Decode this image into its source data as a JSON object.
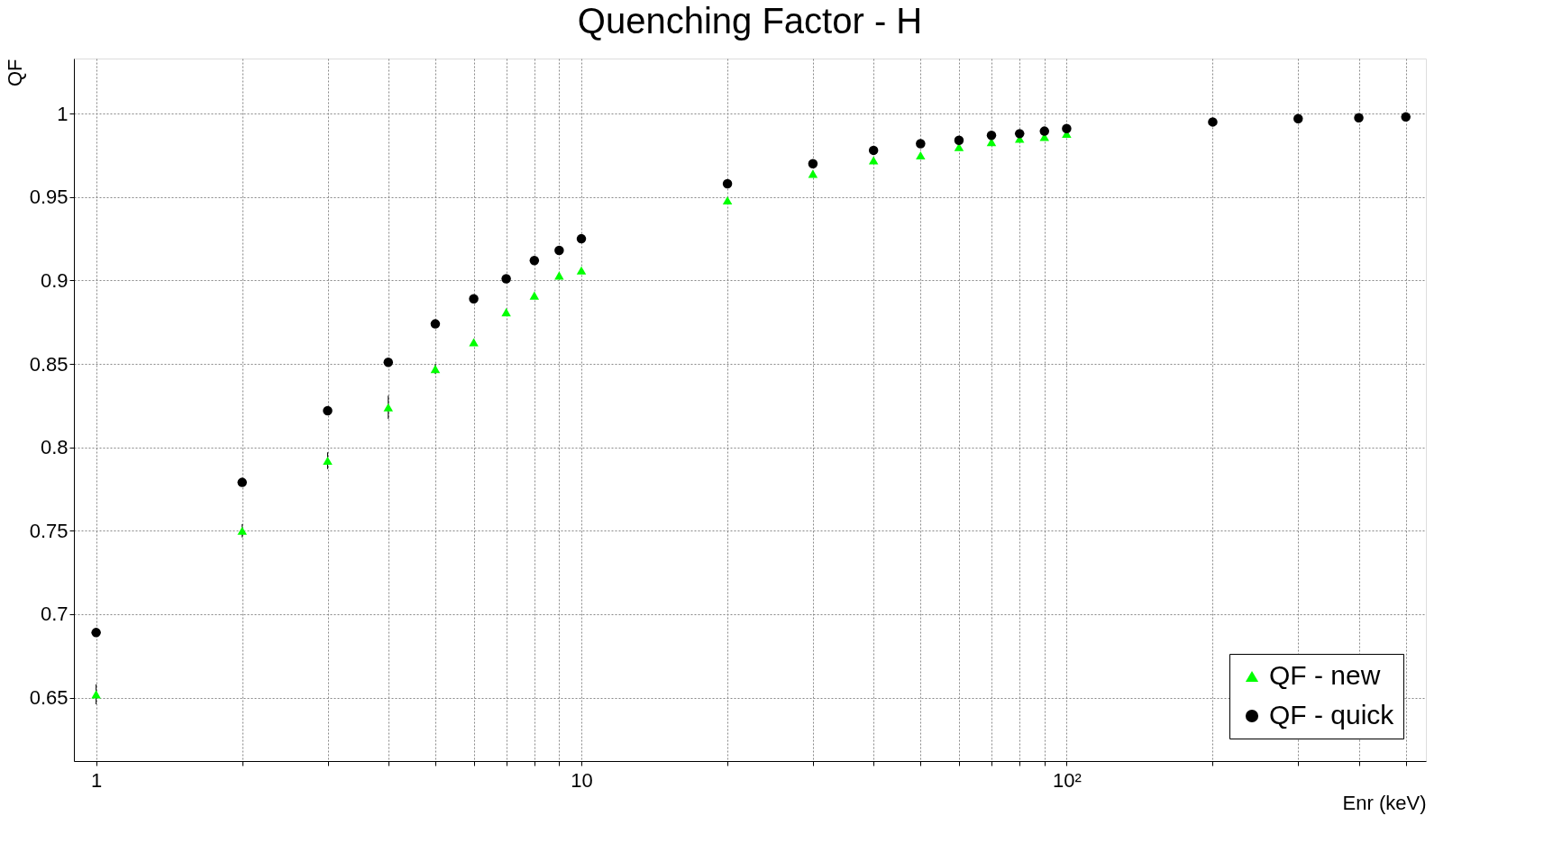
{
  "chart_data": {
    "type": "scatter",
    "title": "Quenching Factor - H",
    "xlabel": "Enr (keV)",
    "ylabel": "QF",
    "log": "x",
    "x": [
      1,
      2,
      3,
      4,
      5,
      6,
      7,
      8,
      9,
      10,
      20,
      30,
      40,
      50,
      60,
      70,
      80,
      90,
      100,
      200,
      300,
      400,
      500
    ],
    "series": [
      {
        "name": "QF - new",
        "color": "#00ff00",
        "marker": "triangle",
        "values": [
          0.652,
          0.75,
          0.792,
          0.824,
          0.847,
          0.863,
          0.881,
          0.891,
          0.903,
          0.906,
          0.948,
          0.964,
          0.972,
          0.975,
          0.98,
          0.983,
          0.985,
          0.986,
          0.988,
          null,
          null,
          null,
          null
        ],
        "errors": [
          0.006,
          0.004,
          0.005,
          0.007,
          0.003,
          0.002,
          null,
          null,
          null,
          null,
          null,
          null,
          null,
          null,
          null,
          null,
          null,
          null,
          null,
          null,
          null,
          null,
          null
        ]
      },
      {
        "name": "QF - quick",
        "color": "#000000",
        "marker": "circle",
        "values": [
          0.689,
          0.779,
          0.822,
          0.851,
          0.874,
          0.889,
          0.901,
          0.912,
          0.918,
          0.925,
          0.958,
          0.97,
          0.978,
          0.982,
          0.984,
          0.987,
          0.988,
          0.9895,
          0.991,
          0.995,
          0.997,
          0.9975,
          0.998
        ]
      }
    ],
    "xlim": [
      0.9,
      550
    ],
    "ylim": [
      0.612,
      1.033
    ],
    "xticks": [
      1,
      {
        "value": 2,
        "label": null
      },
      {
        "value": 3,
        "label": null
      },
      {
        "value": 4,
        "label": null
      },
      {
        "value": 5,
        "label": null
      },
      {
        "value": 6,
        "label": null
      },
      {
        "value": 7,
        "label": null
      },
      {
        "value": 8,
        "label": null
      },
      {
        "value": 9,
        "label": null
      },
      10,
      {
        "value": 20,
        "label": null
      },
      {
        "value": 30,
        "label": null
      },
      {
        "value": 40,
        "label": null
      },
      {
        "value": 50,
        "label": null
      },
      {
        "value": 60,
        "label": null
      },
      {
        "value": 70,
        "label": null
      },
      {
        "value": 80,
        "label": null
      },
      {
        "value": 90,
        "label": null
      },
      {
        "value": 100,
        "label": "10²"
      },
      {
        "value": 200,
        "label": null
      },
      {
        "value": 300,
        "label": null
      },
      {
        "value": 400,
        "label": null
      },
      {
        "value": 500,
        "label": null
      }
    ],
    "yticks": [
      0.65,
      0.7,
      0.75,
      0.8,
      0.85,
      0.9,
      0.95,
      1
    ],
    "grid": true,
    "legend": "bottom right"
  }
}
